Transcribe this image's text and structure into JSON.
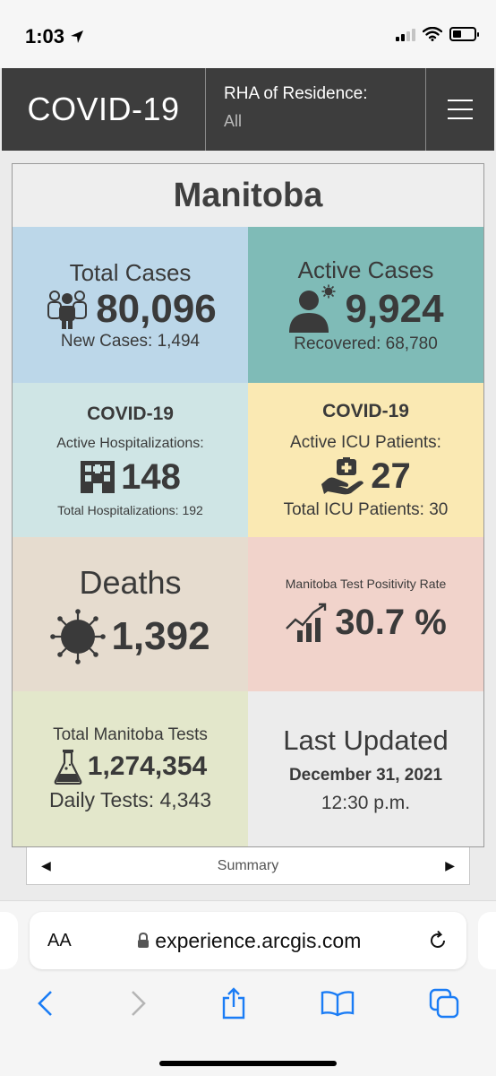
{
  "status_bar": {
    "time": "1:03"
  },
  "header": {
    "title": "COVID-19",
    "filter_label": "RHA of Residence:",
    "filter_value": "All"
  },
  "card": {
    "title": "Manitoba",
    "total_cases": {
      "label": "Total Cases",
      "value": "80,096",
      "sub": "New Cases: 1,494"
    },
    "active_cases": {
      "label": "Active Cases",
      "value": "9,924",
      "sub": "Recovered: 68,780"
    },
    "hospital": {
      "heading": "COVID-19",
      "label": "Active Hospitalizations:",
      "value": "148",
      "sub": "Total Hospitalizations: 192"
    },
    "icu": {
      "heading": "COVID-19",
      "label": "Active ICU Patients:",
      "value": "27",
      "sub": "Total ICU Patients: 30"
    },
    "deaths": {
      "label": "Deaths",
      "value": "1,392"
    },
    "positivity": {
      "label": "Manitoba Test Positivity Rate",
      "value": "30.7 %"
    },
    "tests": {
      "label": "Total Manitoba Tests",
      "value": "1,274,354",
      "sub": "Daily Tests: 4,343"
    },
    "updated": {
      "label": "Last Updated",
      "date": "December 31, 2021",
      "time": "12:30 p.m."
    }
  },
  "carousel": {
    "label": "Summary"
  },
  "browser": {
    "aa_label": "AA",
    "url": "experience.arcgis.com"
  },
  "colors": {
    "header_bg": "#3d3d3d",
    "total_cases": "#bcd7e9",
    "active_cases": "#7fbbb7",
    "hospital": "#cfe5e5",
    "icu": "#fae9b3",
    "deaths": "#e6dccf",
    "positivity": "#f1d3cb",
    "tests": "#e3e7cb",
    "updated": "#ececec",
    "ios_blue": "#1a7cf5"
  }
}
